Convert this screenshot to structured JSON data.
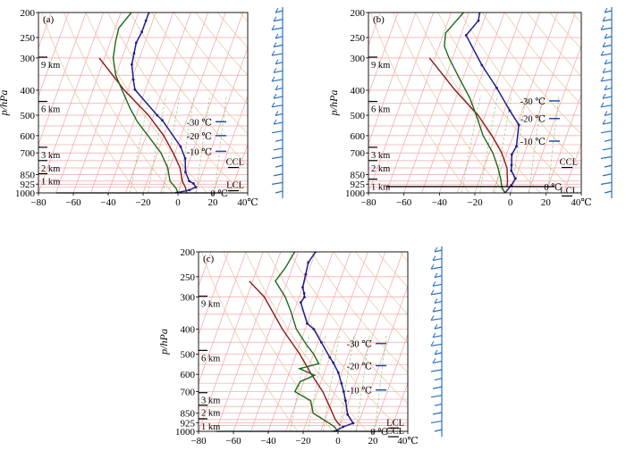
{
  "figure": {
    "ylabel": "p/hPa",
    "panels": [
      {
        "label": "(a)",
        "heights": [
          {
            "text": "9 km",
            "p": 320
          },
          {
            "text": "6 km",
            "p": 475
          },
          {
            "text": "3 km",
            "p": 715
          },
          {
            "text": "2 km",
            "p": 805
          },
          {
            "text": "1 km",
            "p": 905
          }
        ],
        "isotherm_marks": [
          {
            "text": "-30 ℃",
            "p": 530
          },
          {
            "text": "-20 ℃",
            "p": 600
          },
          {
            "text": "-10 ℃",
            "p": 690
          },
          {
            "text": "0 ℃",
            "p": 1000
          }
        ],
        "levels": [
          {
            "text": "CCL",
            "p": 760
          },
          {
            "text": "LCL",
            "p": 935
          }
        ]
      },
      {
        "label": "(b)",
        "heights": [
          {
            "text": "9 km",
            "p": 320
          },
          {
            "text": "6 km",
            "p": 475
          },
          {
            "text": "3 km",
            "p": 715
          },
          {
            "text": "2 km",
            "p": 805
          },
          {
            "text": "1 km",
            "p": 950
          }
        ],
        "isotherm_marks": [
          {
            "text": "-30 ℃",
            "p": 440
          },
          {
            "text": "-20 ℃",
            "p": 515
          },
          {
            "text": "-10 ℃",
            "p": 630
          },
          {
            "text": "0 ℃",
            "p": 945
          }
        ],
        "levels": [
          {
            "text": "CCL",
            "p": 760
          },
          {
            "text": "LCL",
            "p": 980
          }
        ]
      },
      {
        "label": "(c)",
        "heights": [
          {
            "text": "9 km",
            "p": 320
          },
          {
            "text": "6 km",
            "p": 520
          },
          {
            "text": "3 km",
            "p": 760
          },
          {
            "text": "2 km",
            "p": 850
          },
          {
            "text": "1 km",
            "p": 960
          }
        ],
        "isotherm_marks": [
          {
            "text": "-30 ℃",
            "p": 455
          },
          {
            "text": "-20 ℃",
            "p": 555
          },
          {
            "text": "-10 ℃",
            "p": 690
          },
          {
            "text": "0 ℃",
            "p": 1000
          }
        ],
        "levels": [
          {
            "text": "LCL",
            "p": 925
          },
          {
            "text": "CCL",
            "p": 1000
          }
        ]
      }
    ]
  },
  "chart_data": [
    {
      "type": "line",
      "title": "(a)",
      "ylabel": "p/hPa",
      "xlabel": "℃",
      "x_ticks": [
        "−80",
        "−60",
        "−40",
        "−20",
        "0",
        "20",
        "40℃"
      ],
      "y_ticks": [
        "200",
        "250",
        "300",
        "400",
        "500",
        "600",
        "700",
        "850",
        "925",
        "1000"
      ],
      "xlim": [
        -80,
        40
      ],
      "ylim": [
        1000,
        200
      ],
      "y_scale": "log",
      "series": [
        {
          "role": "temperature",
          "color": "#1e1e8c",
          "points": [
            [
              -54,
              200
            ],
            [
              -54,
              215
            ],
            [
              -54,
              238
            ],
            [
              -55,
              262
            ],
            [
              -54,
              288
            ],
            [
              -53,
              318
            ],
            [
              -49,
              364
            ],
            [
              -46,
              398
            ],
            [
              -28,
              500
            ],
            [
              -24,
              523
            ],
            [
              -8,
              662
            ],
            [
              -3,
              735
            ],
            [
              0,
              830
            ],
            [
              4,
              900
            ],
            [
              7,
              920
            ],
            [
              9,
              950
            ],
            [
              6,
              975
            ],
            [
              -1,
              1000
            ]
          ]
        },
        {
          "role": "dew point",
          "color": "#1a6b1a",
          "points": [
            [
              -64,
              200
            ],
            [
              -68,
              230
            ],
            [
              -67,
              260
            ],
            [
              -65,
              300
            ],
            [
              -60,
              350
            ],
            [
              -52,
              410
            ],
            [
              -45,
              470
            ],
            [
              -38,
              530
            ],
            [
              -29,
              600
            ],
            [
              -18,
              700
            ],
            [
              -11,
              800
            ],
            [
              -7,
              900
            ],
            [
              -2,
              960
            ],
            [
              0,
              1000
            ]
          ]
        },
        {
          "role": "parcel",
          "color": "#8b1a1a",
          "points": [
            [
              -73,
              300
            ],
            [
              -52,
              400
            ],
            [
              -33,
              500
            ],
            [
              -20,
              600
            ],
            [
              -11,
              700
            ],
            [
              -4,
              800
            ],
            [
              0,
              900
            ],
            [
              3,
              950
            ],
            [
              5,
              1000
            ]
          ]
        }
      ]
    },
    {
      "type": "line",
      "title": "(b)",
      "ylabel": "p/hPa",
      "xlabel": "℃",
      "x_ticks": [
        "−80",
        "−60",
        "−40",
        "−20",
        "0",
        "20",
        "40℃"
      ],
      "y_ticks": [
        "200",
        "250",
        "300",
        "400",
        "500",
        "600",
        "700",
        "850",
        "925",
        "1000"
      ],
      "xlim": [
        -80,
        40
      ],
      "ylim": [
        1000,
        200
      ],
      "y_scale": "log",
      "series": [
        {
          "role": "temperature",
          "color": "#1e1e8c",
          "points": [
            [
              -54,
              200
            ],
            [
              -53,
              215
            ],
            [
              -57,
              245
            ],
            [
              -42,
              320
            ],
            [
              -29,
              392
            ],
            [
              -17,
              480
            ],
            [
              -9,
              545
            ],
            [
              -6,
              660
            ],
            [
              -7,
              710
            ],
            [
              -5,
              780
            ],
            [
              -4,
              820
            ],
            [
              0,
              880
            ],
            [
              -1,
              935
            ],
            [
              -3,
              1000
            ]
          ]
        },
        {
          "role": "dew point",
          "color": "#1a6b1a",
          "points": [
            [
              -63,
              200
            ],
            [
              -69,
              240
            ],
            [
              -67,
              270
            ],
            [
              -62,
              300
            ],
            [
              -52,
              360
            ],
            [
              -42,
              430
            ],
            [
              -35,
              500
            ],
            [
              -27,
              600
            ],
            [
              -18,
              700
            ],
            [
              -12,
              800
            ],
            [
              -8,
              890
            ],
            [
              -6,
              950
            ],
            [
              -3,
              1000
            ]
          ]
        },
        {
          "role": "parcel",
          "color": "#8b1a1a",
          "points": [
            [
              -73,
              300
            ],
            [
              -52,
              400
            ],
            [
              -34,
              500
            ],
            [
              -22,
              600
            ],
            [
              -13,
              700
            ],
            [
              -7,
              800
            ],
            [
              -4,
              900
            ],
            [
              -3,
              950
            ]
          ]
        }
      ]
    },
    {
      "type": "line",
      "title": "(c)",
      "ylabel": "p/hPa",
      "xlabel": "℃",
      "x_ticks": [
        "−80",
        "−60",
        "−40",
        "−20",
        "0",
        "20",
        "40℃"
      ],
      "y_ticks": [
        "200",
        "250",
        "300",
        "400",
        "500",
        "600",
        "700",
        "850",
        "925",
        "1000"
      ],
      "xlim": [
        -80,
        40
      ],
      "ylim": [
        1000,
        200
      ],
      "y_scale": "log",
      "series": [
        {
          "role": "temperature",
          "color": "#1e1e8c",
          "points": [
            [
              -50,
              200
            ],
            [
              -52,
              220
            ],
            [
              -51,
              245
            ],
            [
              -50,
              275
            ],
            [
              -48,
              290
            ],
            [
              -47,
              300
            ],
            [
              -48,
              315
            ],
            [
              -40,
              380
            ],
            [
              -35,
              400
            ],
            [
              -28,
              450
            ],
            [
              -20,
              515
            ],
            [
              -17,
              540
            ],
            [
              -12,
              590
            ],
            [
              -8,
              650
            ],
            [
              -5,
              700
            ],
            [
              -2,
              760
            ],
            [
              2,
              860
            ],
            [
              7,
              930
            ],
            [
              2,
              960
            ],
            [
              -2,
              1000
            ]
          ]
        },
        {
          "role": "dew point",
          "color": "#1a6b1a",
          "points": [
            [
              -62,
              200
            ],
            [
              -64,
              230
            ],
            [
              -67,
              260
            ],
            [
              -58,
              300
            ],
            [
              -52,
              340
            ],
            [
              -45,
              400
            ],
            [
              -36,
              460
            ],
            [
              -30,
              500
            ],
            [
              -25,
              545
            ],
            [
              -35,
              570
            ],
            [
              -25,
              605
            ],
            [
              -32,
              640
            ],
            [
              -33,
              700
            ],
            [
              -22,
              760
            ],
            [
              -18,
              850
            ],
            [
              -8,
              920
            ],
            [
              -3,
              960
            ],
            [
              0,
              1000
            ]
          ]
        },
        {
          "role": "parcel",
          "color": "#8b1a1a",
          "points": [
            [
              -82,
              260
            ],
            [
              -70,
              300
            ],
            [
              -53,
              400
            ],
            [
              -38,
              500
            ],
            [
              -27,
              600
            ],
            [
              -17,
              700
            ],
            [
              -10,
              800
            ],
            [
              -4,
              900
            ],
            [
              0,
              950
            ]
          ]
        }
      ]
    }
  ]
}
